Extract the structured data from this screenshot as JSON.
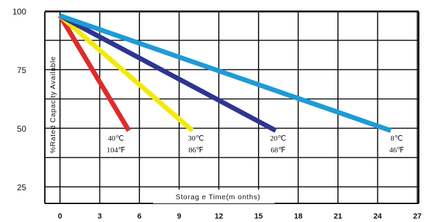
{
  "chart_data": {
    "type": "line",
    "xlabel": "Storag e Time(m onths)",
    "ylabel": "%Rated Capacity Available",
    "xlim": [
      0,
      27
    ],
    "ylim": [
      25,
      100
    ],
    "x_ticks": [
      "0",
      "3",
      "6",
      "9",
      "12",
      "15",
      "18",
      "21",
      "24",
      "27"
    ],
    "y_ticks": [
      "25",
      "50",
      "75",
      "100"
    ],
    "grid": true,
    "series": [
      {
        "label_lines": [
          "40℃",
          "104℉"
        ],
        "color": "#e02a2a",
        "points": [
          [
            0,
            98
          ],
          [
            5.2,
            49
          ]
        ]
      },
      {
        "label_lines": [
          "30℃",
          "86℉"
        ],
        "color": "#f2ea0a",
        "points": [
          [
            0,
            98
          ],
          [
            10,
            49
          ]
        ]
      },
      {
        "label_lines": [
          "20℃",
          "68℉"
        ],
        "color": "#2e3591",
        "points": [
          [
            0,
            98
          ],
          [
            16.3,
            49
          ]
        ]
      },
      {
        "label_lines": [
          "8℃",
          "46℉"
        ],
        "color": "#1e9bd7",
        "points": [
          [
            0,
            98
          ],
          [
            25,
            49
          ]
        ]
      }
    ]
  }
}
